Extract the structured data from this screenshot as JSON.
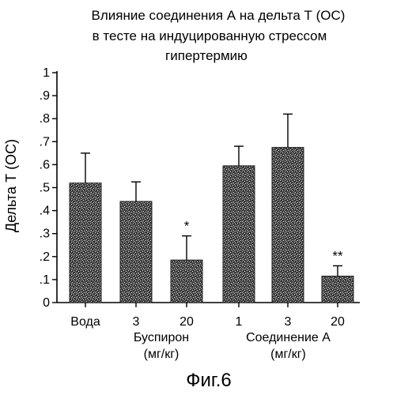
{
  "chart_data": {
    "type": "bar",
    "title_lines": [
      "Влияние соединения А на дельта Т (ОС)",
      "в тесте на индуцированную стрессом",
      "гипертермию"
    ],
    "ylabel": "Дельта Т (ОС)",
    "ylim": [
      0,
      1
    ],
    "y_ticks": [
      "0",
      ".1",
      ".2",
      ".3",
      ".4",
      ".5",
      ".6",
      ".7",
      ".8",
      ".9",
      "1"
    ],
    "categories": [
      "Вода",
      "3",
      "20",
      "1",
      "3",
      "20"
    ],
    "values": [
      0.52,
      0.44,
      0.185,
      0.595,
      0.675,
      0.115
    ],
    "errors": [
      0.13,
      0.085,
      0.105,
      0.085,
      0.145,
      0.045
    ],
    "significance": [
      "",
      "",
      "*",
      "",
      "",
      "**"
    ],
    "groups": [
      {
        "label": "Буспирон",
        "unit": "(мг/кг)",
        "from": 1,
        "to": 2
      },
      {
        "label": "Соединение А",
        "unit": "(мг/кг)",
        "from": 3,
        "to": 5
      }
    ],
    "bar_fill": "#5a5a5a",
    "caption": "Фиг.6"
  }
}
